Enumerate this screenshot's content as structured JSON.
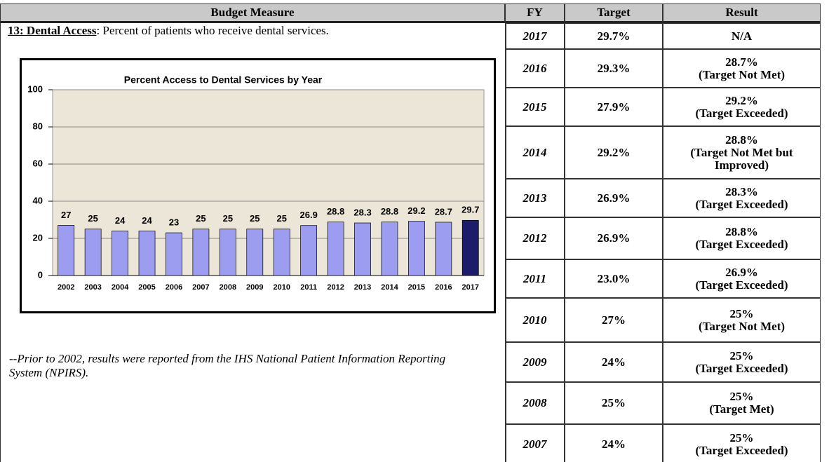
{
  "table": {
    "headers": [
      "Budget Measure",
      "FY",
      "Target",
      "Result"
    ],
    "rows": [
      {
        "fy": "2017",
        "target": "29.7%",
        "result": "N/A"
      },
      {
        "fy": "2016",
        "target": "29.3%",
        "result": "28.7%",
        "status": "(Target Not Met)"
      },
      {
        "fy": "2015",
        "target": "27.9%",
        "result": "29.2%",
        "status": "(Target Exceeded)"
      },
      {
        "fy": "2014",
        "target": "29.2%",
        "result": "28.8%",
        "status": "(Target Not Met but Improved)"
      },
      {
        "fy": "2013",
        "target": "26.9%",
        "result": "28.3%",
        "status": "(Target Exceeded)"
      },
      {
        "fy": "2012",
        "target": "26.9%",
        "result": "28.8%",
        "status": "(Target Exceeded)"
      },
      {
        "fy": "2011",
        "target": "23.0%",
        "result": "26.9%",
        "status": "(Target Exceeded)"
      },
      {
        "fy": "2010",
        "target": "27%",
        "result": "25%",
        "status": "(Target Not Met)"
      },
      {
        "fy": "2009",
        "target": "24%",
        "result": "25%",
        "status": "(Target Exceeded)"
      },
      {
        "fy": "2008",
        "target": "25%",
        "result": "25%",
        "status": "(Target Met)"
      },
      {
        "fy": "2007",
        "target": "24%",
        "result": "25%",
        "status": "(Target Exceeded)"
      }
    ]
  },
  "measure": {
    "label": "13: Dental Access",
    "text": ": Percent of patients who receive dental services."
  },
  "footnote": "--Prior to 2002, results were reported from the IHS National Patient Information Reporting System (NPIRS).",
  "chart_data": {
    "type": "bar",
    "title": "Percent Access to Dental Services by Year",
    "categories": [
      "2002",
      "2003",
      "2004",
      "2005",
      "2006",
      "2007",
      "2008",
      "2009",
      "2010",
      "2011",
      "2012",
      "2013",
      "2014",
      "2015",
      "2016",
      "2017"
    ],
    "values": [
      27,
      25,
      24,
      24,
      23,
      25,
      25,
      25,
      25,
      26.9,
      28.8,
      28.3,
      28.8,
      29.2,
      28.7,
      29.7
    ],
    "colors": [
      "#9c9cf0",
      "#9c9cf0",
      "#9c9cf0",
      "#9c9cf0",
      "#9c9cf0",
      "#9c9cf0",
      "#9c9cf0",
      "#9c9cf0",
      "#9c9cf0",
      "#9c9cf0",
      "#9c9cf0",
      "#9c9cf0",
      "#9c9cf0",
      "#9c9cf0",
      "#9c9cf0",
      "#1c1c6a"
    ],
    "ylim": [
      0,
      100
    ],
    "yticks": [
      0,
      20,
      40,
      60,
      80,
      100
    ],
    "grid": true
  }
}
